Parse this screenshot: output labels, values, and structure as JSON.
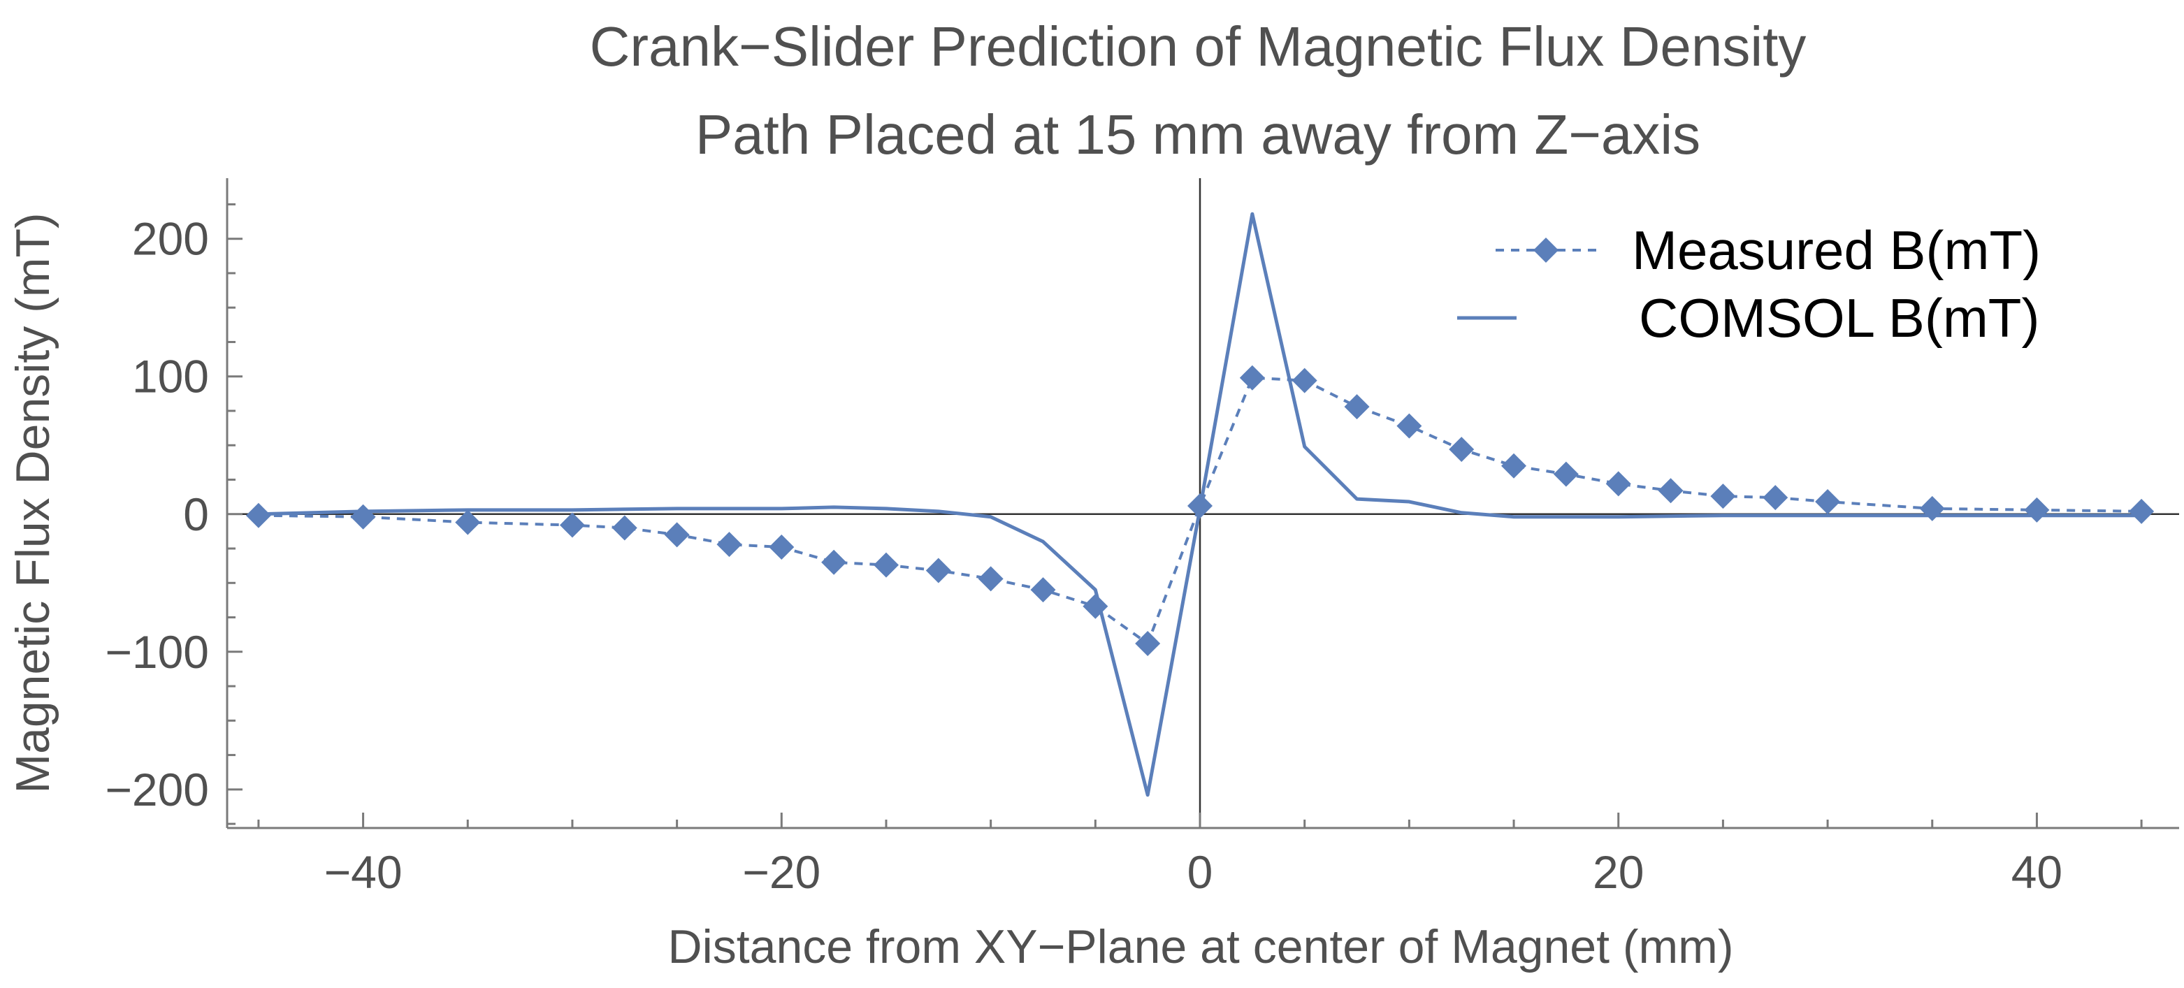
{
  "colors": {
    "series": "#5b7fba",
    "axis": "#7a7a7a",
    "zero_line": "#333333",
    "text": "#505050"
  },
  "chart_data": {
    "type": "line",
    "title": "Crank−Slider Prediction of Magnetic Flux Density",
    "subtitle": "Path Placed at 15 mm away from Z−axis",
    "xlabel": "Distance from XY−Plane at center of Magnet (mm)",
    "ylabel": "Magnetic Flux Density (mT)",
    "xlim": [
      -46.5,
      46.8
    ],
    "ylim": [
      -228,
      244
    ],
    "xticks": [
      -40,
      -20,
      0,
      20,
      40
    ],
    "xtick_labels": [
      "−40",
      "−20",
      "0",
      "20",
      "40"
    ],
    "yticks": [
      -200,
      -100,
      0,
      100,
      200
    ],
    "ytick_labels": [
      "−200",
      "−100",
      "0",
      "100",
      "200"
    ],
    "legend_position": "top-right",
    "series": [
      {
        "name": "Measured B(mT)",
        "style": "dashed-diamond",
        "x": [
          -45,
          -40,
          -35,
          -30,
          -27.5,
          -25,
          -22.5,
          -20,
          -17.5,
          -15,
          -12.5,
          -10,
          -7.5,
          -5,
          -2.5,
          0,
          2.5,
          5,
          7.5,
          10,
          12.5,
          15,
          17.5,
          20,
          22.5,
          25,
          27.5,
          30,
          35,
          40,
          45
        ],
        "y": [
          -1,
          -2,
          -6,
          -8,
          -10,
          -15,
          -22,
          -24,
          -35,
          -37,
          -41,
          -47,
          -55,
          -67,
          -94,
          6,
          99,
          97,
          78,
          64,
          47,
          35,
          29,
          22,
          17,
          13,
          12,
          9,
          4,
          3,
          2
        ]
      },
      {
        "name": "COMSOL B(mT)",
        "style": "solid",
        "x": [
          -45,
          -40,
          -35,
          -30,
          -25,
          -20,
          -17.5,
          -15,
          -12.5,
          -10,
          -7.5,
          -5,
          -2.5,
          0,
          2.5,
          5,
          7.5,
          10,
          12.5,
          15,
          20,
          25,
          30,
          35,
          40,
          45
        ],
        "y": [
          0,
          2,
          3,
          3,
          4,
          4,
          5,
          4,
          2,
          -2,
          -20,
          -55,
          -204,
          4,
          218,
          49,
          11,
          9,
          1,
          -2,
          -2,
          -1,
          -1,
          -1,
          -1,
          -1
        ]
      }
    ]
  }
}
